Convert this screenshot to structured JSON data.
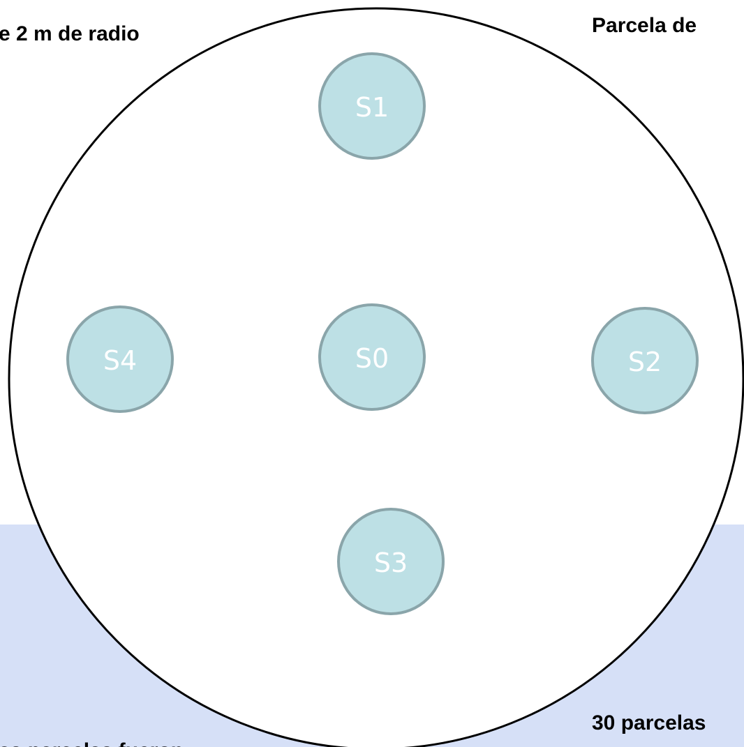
{
  "labels": {
    "top_left": "e 2 m de radio",
    "top_right": "Parcela de",
    "bottom_right": "30 parcelas",
    "bottom_left": "as parcelas fueron"
  },
  "nodes": [
    {
      "label": "S1"
    },
    {
      "label": "S4"
    },
    {
      "label": "S0"
    },
    {
      "label": "S2"
    },
    {
      "label": "S3"
    }
  ]
}
